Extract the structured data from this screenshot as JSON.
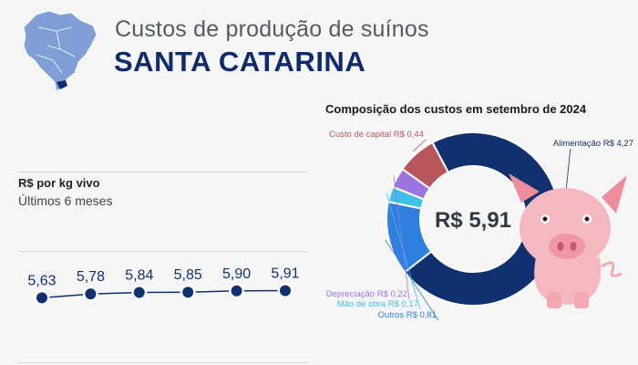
{
  "header": {
    "subtitle": "Custos de produção de suínos",
    "title": "SANTA CATARINA"
  },
  "icons": {
    "map": "brazil-map-icon",
    "pig": "pig-illustration"
  },
  "colors": {
    "navy": "#10306f",
    "blue": "#2f7fde",
    "red": "#b7575c",
    "cyan": "#3fc0e6",
    "purple": "#9c74e0",
    "marker": "#10306f"
  },
  "chart_data": [
    {
      "type": "line",
      "title": "R$ por kg vivo",
      "subtitle": "Últimos 6 meses",
      "x": [
        1,
        2,
        3,
        4,
        5,
        6
      ],
      "values": [
        5.63,
        5.78,
        5.84,
        5.85,
        5.9,
        5.91
      ],
      "data_labels": [
        "5,63",
        "5,78",
        "5,84",
        "5,85",
        "5,90",
        "5,91"
      ],
      "grid": false
    },
    {
      "type": "pie",
      "title": "Composição dos custos em setembro de 2024",
      "center_label": "R$ 5,91",
      "slices": [
        {
          "name": "Alimentação",
          "value": 4.27,
          "label": "Alimentação R$ 4,27",
          "color": "#10306f"
        },
        {
          "name": "Outros",
          "value": 0.81,
          "label": "Outros R$ 0,81",
          "color": "#2f7fde"
        },
        {
          "name": "Mão de obra",
          "value": 0.17,
          "label": "Mão de obra R$ 0,17",
          "color": "#3fc0e6"
        },
        {
          "name": "Depreciação",
          "value": 0.22,
          "label": "Depreciação R$ 0,22",
          "color": "#9c74e0"
        },
        {
          "name": "Custo de capital",
          "value": 0.44,
          "label": "Custo de capital R$ 0,44",
          "color": "#b7575c"
        }
      ]
    }
  ]
}
